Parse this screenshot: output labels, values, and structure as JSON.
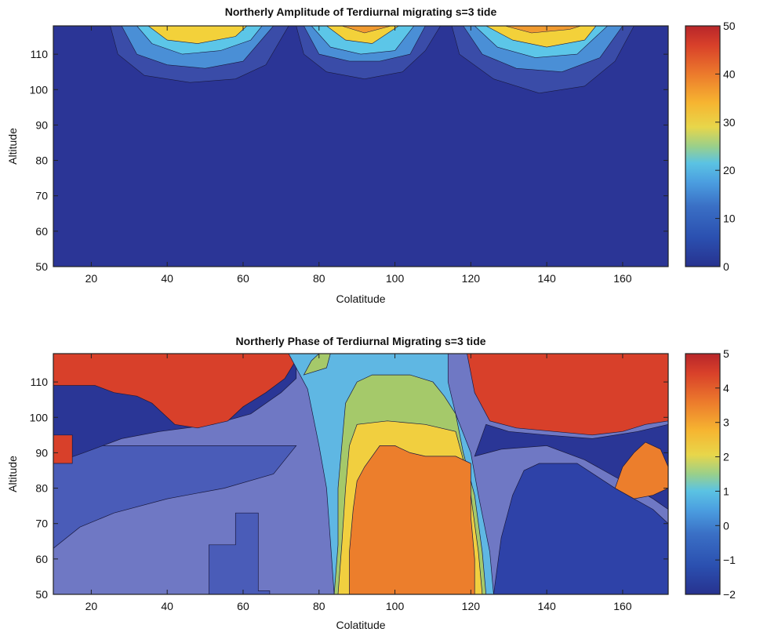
{
  "chart_data": [
    {
      "type": "heatmap",
      "title": "Northerly Amplitude of Terdiurnal migrating s=3 tide",
      "xlabel": "Colatitude",
      "ylabel": "Altitude",
      "xlim": [
        10,
        172
      ],
      "ylim": [
        50,
        118
      ],
      "xticks": [
        20,
        40,
        60,
        80,
        100,
        120,
        140,
        160
      ],
      "yticks": [
        50,
        60,
        70,
        80,
        90,
        100,
        110
      ],
      "colorbar": {
        "min": 0,
        "max": 50,
        "ticks": [
          0,
          10,
          20,
          30,
          40,
          50
        ]
      },
      "background_value": 3,
      "features": [
        {
          "colatitude": 50,
          "altitude_top": 118,
          "peak_value": 32,
          "bottom_altitude": 102
        },
        {
          "colatitude": 92,
          "altitude_top": 118,
          "peak_value": 45,
          "bottom_altitude": 102
        },
        {
          "colatitude": 139,
          "altitude_top": 118,
          "peak_value": 46,
          "bottom_altitude": 99
        }
      ]
    },
    {
      "type": "heatmap",
      "title": "Northerly Phase of Terdiurnal Migrating s=3 tide",
      "xlabel": "Colatitude",
      "ylabel": "Altitude",
      "xlim": [
        10,
        172
      ],
      "ylim": [
        50,
        118
      ],
      "xticks": [
        20,
        40,
        60,
        80,
        100,
        120,
        140,
        160
      ],
      "yticks": [
        50,
        60,
        70,
        80,
        90,
        100,
        110
      ],
      "colorbar": {
        "min": -2,
        "max": 5,
        "ticks": [
          -2,
          -1,
          0,
          1,
          2,
          3,
          4,
          5
        ]
      },
      "regions": [
        {
          "value": -1.0,
          "description_value": "lower background"
        },
        {
          "value": -1.7,
          "description_value": "low latitudes band"
        },
        {
          "value": 4.4,
          "description_value": "upper left band"
        },
        {
          "value": 0.2,
          "description_value": "central column"
        },
        {
          "value": 3.3,
          "description_value": "central core"
        },
        {
          "value": 4.4,
          "description_value": "upper right band"
        }
      ]
    }
  ],
  "colormap": [
    "#27328f",
    "#2946a4",
    "#2b63be",
    "#318ad6",
    "#4cb2e6",
    "#7cc9dc",
    "#a9cf6e",
    "#e6d54b",
    "#f5c233",
    "#f39a30",
    "#ea6a2a",
    "#d8402a",
    "#b8262a"
  ]
}
